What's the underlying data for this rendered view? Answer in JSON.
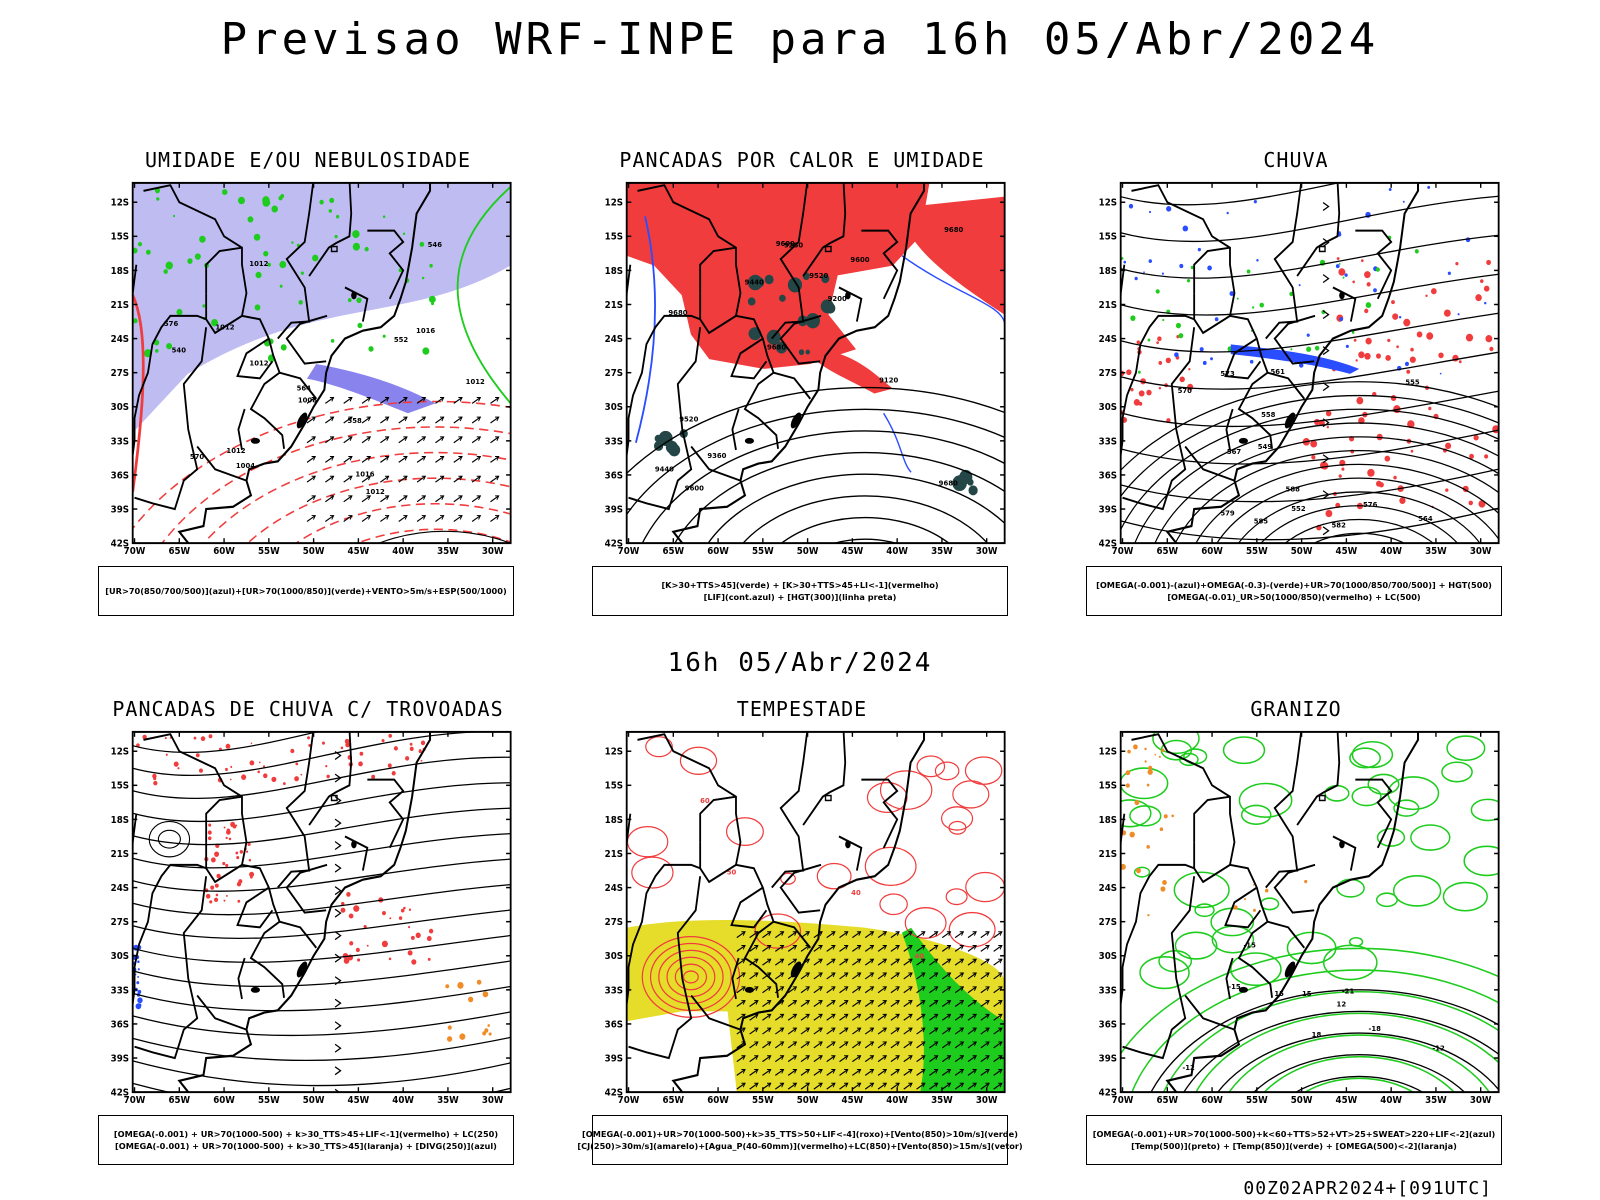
{
  "title": "Previsao WRF-INPE  para 16h 05/Abr/2024",
  "mid_title": "16h 05/Abr/2024",
  "footer": "00Z02APR2024+[091UTC]",
  "axes": {
    "lat_labels": [
      "12S",
      "15S",
      "18S",
      "21S",
      "24S",
      "27S",
      "30S",
      "33S",
      "36S",
      "39S",
      "42S"
    ],
    "lon_labels": [
      "70W",
      "65W",
      "60W",
      "55W",
      "50W",
      "45W",
      "40W",
      "35W",
      "30W"
    ]
  },
  "colors": {
    "red": "#f03c3c",
    "green": "#1ecc1e",
    "blue": "#2a4dff",
    "lavender": "#b4b0f0",
    "yellow": "#e6dc2a",
    "dark_teal": "#244646",
    "orange": "#f08c28"
  },
  "panels": [
    {
      "id": "p1",
      "title": "UMIDADE E/OU NEBULOSIDADE",
      "legend": [
        "[UR>70(850/700/500)](azul)+[UR>70(1000/850)](verde)+VENTO>5m/s+ESP(500/1000)"
      ],
      "contour_labels": [
        "1012",
        "1012",
        "1012",
        "1012",
        "1016",
        "1016",
        "1012",
        "1012",
        "1008",
        "1004",
        "570",
        "576",
        "564",
        "558",
        "552",
        "546",
        "540"
      ]
    },
    {
      "id": "p2",
      "title": "PANCADAS POR CALOR E UMIDADE",
      "legend": [
        "[K>30+TTS>45](verde) + [K>30+TTS>45+LI<-1](vermelho)",
        "[LIF](cont.azul) + [HGT(300)](linha preta)"
      ],
      "contour_labels": [
        "9680",
        "9680",
        "9680",
        "9680",
        "9600",
        "9600",
        "9600",
        "9520",
        "9520",
        "9440",
        "9440",
        "9360",
        "9280",
        "9200",
        "9120"
      ]
    },
    {
      "id": "p3",
      "title": "CHUVA",
      "legend": [
        "[OMEGA(-0.001)-(azul)+OMEGA(-0.3)-(verde)+UR>70(1000/850/700/500)] + HGT(500)",
        "[OMEGA(-0.01)_UR>50(1000/850)(vermelho) + LC(500)"
      ],
      "contour_labels": [
        "585",
        "582",
        "579",
        "576",
        "573",
        "570",
        "567",
        "564",
        "561",
        "558",
        "555",
        "552",
        "549",
        "588"
      ]
    },
    {
      "id": "p4",
      "title": "PANCADAS DE CHUVA C/ TROVOADAS",
      "legend": [
        "[OMEGA(-0.001) + UR>70(1000-500) + k>30_TTS>45+LIF<-1](vermelho) + LC(250)",
        "[OMEGA(-0.001) + UR>70(1000-500) + k>30_TTS>45](laranja) + [DIVG(250)](azul)"
      ],
      "contour_labels": []
    },
    {
      "id": "p5",
      "title": "TEMPESTADE",
      "legend": [
        "[OMEGA(-0.001)+UR>70(1000-500)+k>35_TTS>50+LIF<-4](roxo)+[Vento(850)>10m/s](verde)",
        "[CJ(250)>30m/s](amarelo)+[Agua_P(40-60mm)](vermelho)+LC(850)+[Vento(850)>15m/s](vetor)"
      ],
      "contour_labels": [
        "40",
        "50",
        "40",
        "60"
      ]
    },
    {
      "id": "p6",
      "title": "GRANIZO",
      "legend": [
        "[OMEGA(-0.001)+UR>70(1000-500)+k<60+TTS>52+VT>25+SWEAT>220+LIF<-2](azul)",
        "[Temp(500)](preto) + [Temp(850)](verde) + [OMEGA(500)<-2](laranja)"
      ],
      "contour_labels": [
        "-12",
        "-12",
        "-15",
        "-15",
        "-18",
        "-21",
        "12",
        "15",
        "15",
        "18"
      ]
    }
  ]
}
